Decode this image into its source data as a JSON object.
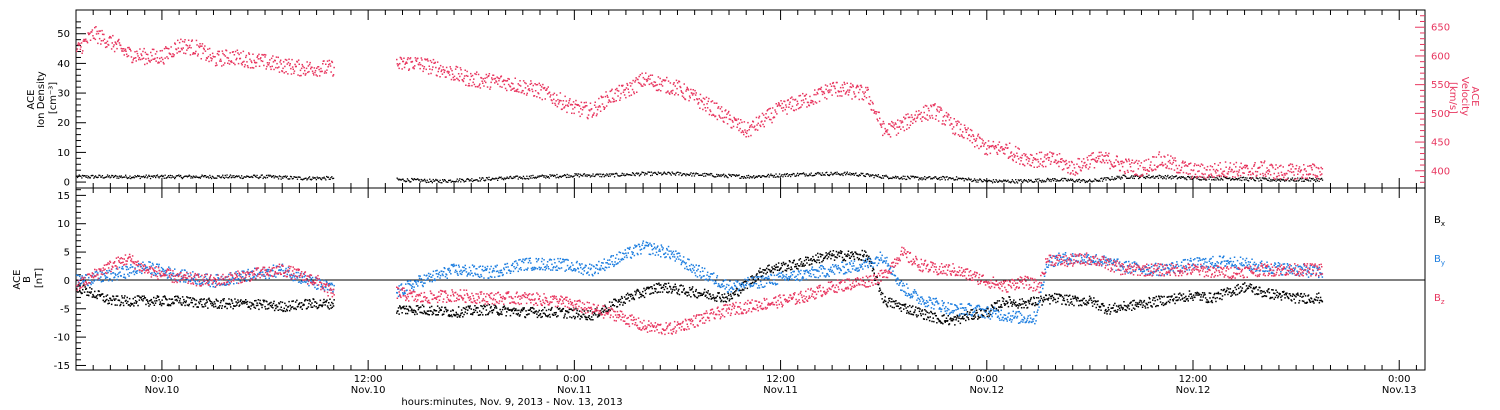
{
  "xlabel": "hours:minutes, Nov.  9, 2013 - Nov. 13, 2013",
  "x_ticks": [
    {
      "time": "0:00",
      "date": "Nov.10",
      "hour": 24
    },
    {
      "time": "12:00",
      "date": "Nov.10",
      "hour": 36
    },
    {
      "time": "0:00",
      "date": "Nov.11",
      "hour": 48
    },
    {
      "time": "12:00",
      "date": "Nov.11",
      "hour": 60
    },
    {
      "time": "0:00",
      "date": "Nov.12",
      "hour": 72
    },
    {
      "time": "12:00",
      "date": "Nov.12",
      "hour": 84
    },
    {
      "time": "0:00",
      "date": "Nov.13",
      "hour": 96
    }
  ],
  "colors": {
    "density": "#000000",
    "velocity": "#e8365f",
    "bx": "#000000",
    "by": "#1f7fe0",
    "bz": "#e8365f"
  },
  "chart_data": [
    {
      "type": "scatter",
      "title": "",
      "xlim": [
        19,
        97.5
      ],
      "x_unit": "hours since Nov. 9, 2013 0:00",
      "left_axis": {
        "label_lines": [
          "ACE",
          "Ion Density",
          "[cm⁻³]"
        ],
        "ylim": [
          -2,
          58
        ],
        "ticks": [
          0,
          10,
          20,
          30,
          40,
          50
        ]
      },
      "right_axis": {
        "label_lines": [
          "ACE",
          "Velocity",
          "[km/s]"
        ],
        "ylim": [
          370,
          680
        ],
        "ticks": [
          400,
          450,
          500,
          550,
          600,
          650
        ]
      },
      "series": [
        {
          "key": "density",
          "axis": "left",
          "x": [
            19.0,
            22.0,
            26.0,
            30.0,
            32.0,
            34.0,
            35.6,
            37.6,
            40.0,
            42.0,
            44.0,
            46.0,
            48.0,
            50.0,
            52.0,
            54.0,
            56.0,
            58.0,
            60.0,
            62.0,
            64.0,
            66.0,
            68.0,
            70.0,
            72.0,
            74.0,
            76.0,
            78.0,
            80.0,
            82.0,
            84.0,
            86.0,
            88.0,
            91.5
          ],
          "y": [
            2,
            2,
            2,
            2,
            1.5,
            1.5,
            null,
            1,
            0.5,
            1,
            1.5,
            2,
            2.5,
            2.5,
            3,
            3,
            2.5,
            2,
            2.5,
            3,
            3,
            2,
            1.5,
            1.5,
            0.5,
            0.5,
            1,
            0.5,
            2,
            2,
            1.5,
            1.5,
            1,
            1
          ]
        },
        {
          "key": "velocity",
          "axis": "right",
          "x": [
            19.0,
            20.0,
            21.0,
            22.0,
            23.0,
            24.0,
            25.0,
            26.0,
            27.0,
            28.0,
            30.0,
            32.0,
            34.0,
            35.6,
            37.6,
            38.5,
            40.0,
            42.0,
            44.0,
            46.0,
            48.0,
            49.0,
            50.0,
            51.0,
            52.0,
            54.0,
            56.0,
            58.0,
            59.0,
            60.0,
            61.0,
            62.0,
            63.0,
            64.0,
            65.0,
            66.0,
            67.0,
            68.0,
            69.0,
            70.0,
            71.0,
            72.0,
            73.0,
            74.0,
            75.0,
            76.0,
            77.0,
            78.0,
            79.0,
            80.0,
            81.0,
            82.0,
            84.0,
            85.0,
            86.0,
            87.0,
            88.0,
            89.0,
            90.0,
            91.5
          ],
          "y": [
            610,
            640,
            625,
            605,
            600,
            600,
            620,
            615,
            595,
            600,
            590,
            580,
            580,
            null,
            585,
            590,
            580,
            560,
            555,
            540,
            510,
            505,
            530,
            540,
            560,
            545,
            510,
            470,
            490,
            510,
            520,
            530,
            545,
            540,
            535,
            470,
            480,
            500,
            505,
            480,
            460,
            440,
            440,
            425,
            420,
            420,
            405,
            420,
            420,
            410,
            405,
            420,
            400,
            400,
            405,
            400,
            405,
            398,
            400,
            400
          ]
        }
      ]
    },
    {
      "type": "scatter",
      "title": "",
      "xlim": [
        19,
        97.5
      ],
      "x_unit": "hours since Nov. 9, 2013 0:00",
      "ylabel_lines": [
        "ACE",
        "B",
        "[nT]"
      ],
      "ylim": [
        -15.8,
        16.3
      ],
      "ticks": [
        -15,
        -10,
        -5,
        0,
        5,
        10,
        15
      ],
      "zero_line": true,
      "series": [
        {
          "name": "B_x",
          "key": "bx",
          "x": [
            19.0,
            21.0,
            23.0,
            25.0,
            27.0,
            29.0,
            31.0,
            32.5,
            34.0,
            35.6,
            37.6,
            39.0,
            41.0,
            43.0,
            45.0,
            47.0,
            49.0,
            51.0,
            53.0,
            55.0,
            57.0,
            59.0,
            61.0,
            62.0,
            63.0,
            64.0,
            65.0,
            66.0,
            67.0,
            68.0,
            69.0,
            70.0,
            71.0,
            72.0,
            73.0,
            74.0,
            75.0,
            76.0,
            77.0,
            78.0,
            79.0,
            80.0,
            81.0,
            82.0,
            83.0,
            84.0,
            85.0,
            86.0,
            87.0,
            88.0,
            89.0,
            90.0,
            91.5
          ],
          "y": [
            -1,
            -3.5,
            -3.5,
            -3.5,
            -4,
            -4,
            -4.5,
            -4,
            -4,
            null,
            -5,
            -5,
            -5.5,
            -5,
            -5.5,
            -5.5,
            -6,
            -3,
            -1,
            -2,
            -3,
            2,
            3,
            4,
            4.5,
            4.5,
            4.5,
            -3.5,
            -4.5,
            -5.5,
            -6.5,
            -7,
            -6,
            -5.5,
            -3.5,
            -4,
            -3.5,
            -3,
            -3.5,
            -3.5,
            -5,
            -4.5,
            -4,
            -3.5,
            -3,
            -2.5,
            -3,
            -2,
            -1,
            -2,
            -2.5,
            -3,
            -3
          ]
        },
        {
          "name": "B_y",
          "key": "by",
          "x": [
            19.0,
            21.0,
            23.0,
            25.0,
            27.0,
            29.0,
            31.0,
            32.5,
            34.0,
            35.6,
            37.6,
            39.0,
            41.0,
            43.0,
            45.0,
            47.0,
            49.0,
            50.5,
            52.0,
            53.5,
            55.0,
            57.0,
            59.0,
            61.0,
            63.0,
            65.0,
            66.0,
            67.0,
            68.0,
            69.0,
            70.0,
            71.0,
            72.0,
            73.0,
            74.0,
            74.8,
            75.5,
            76.5,
            78.0,
            80.0,
            82.0,
            84.0,
            86.0,
            88.0,
            90.0,
            91.5
          ],
          "y": [
            0,
            1,
            2.5,
            1,
            0,
            1,
            2,
            0,
            -1.5,
            null,
            -2,
            0,
            2,
            1.5,
            3,
            3,
            2,
            4,
            6,
            5,
            2,
            -1,
            0,
            1,
            2,
            3,
            4.5,
            -1,
            -3,
            -4,
            -5,
            -5,
            -5.5,
            -6,
            -6.5,
            -6.5,
            3.5,
            4,
            4,
            2.5,
            2,
            3,
            3.5,
            2.5,
            2,
            1.5
          ]
        },
        {
          "name": "B_z",
          "key": "bz",
          "x": [
            19.0,
            20.5,
            22.0,
            23.0,
            25.0,
            27.0,
            29.0,
            31.0,
            33.0,
            34.0,
            35.6,
            37.6,
            39.0,
            41.0,
            43.0,
            45.0,
            47.0,
            49.0,
            50.5,
            52.0,
            53.5,
            55.0,
            57.0,
            59.0,
            61.0,
            63.0,
            65.0,
            66.0,
            67.0,
            68.0,
            69.0,
            70.0,
            71.0,
            72.0,
            73.0,
            74.0,
            75.0,
            75.5,
            76.5,
            78.0,
            79.0,
            80.0,
            82.0,
            84.0,
            86.0,
            88.0,
            90.0,
            91.5
          ],
          "y": [
            -1,
            2,
            4,
            2,
            0.5,
            0,
            1,
            2,
            0,
            -2.5,
            null,
            -2,
            -3,
            -2.5,
            -3,
            -3,
            -3.5,
            -5,
            -6,
            -8,
            -8.5,
            -7,
            -5,
            -4,
            -3,
            -1,
            0,
            1,
            5,
            3,
            2,
            2,
            1,
            0,
            -1,
            0,
            -1,
            4,
            3.5,
            4,
            3,
            2,
            2,
            2,
            1.5,
            2,
            2,
            2
          ]
        }
      ]
    }
  ]
}
